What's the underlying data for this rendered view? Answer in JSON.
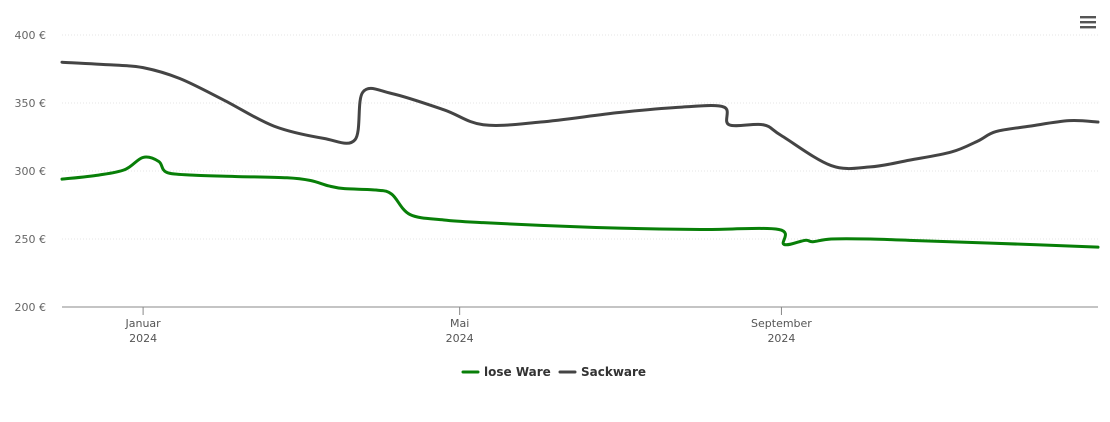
{
  "menu": {
    "icon": "hamburger-menu-icon"
  },
  "chart_data": {
    "type": "line",
    "title": "",
    "xlabel": "",
    "ylabel": "",
    "ylim": [
      200,
      400
    ],
    "xlim": [
      "2023-12-01",
      "2024-12-31"
    ],
    "grid": true,
    "legend_position": "bottom-center",
    "y_ticks": [
      {
        "value": 200,
        "label": "200 €"
      },
      {
        "value": 250,
        "label": "250 €"
      },
      {
        "value": 300,
        "label": "300 €"
      },
      {
        "value": 350,
        "label": "350 €"
      },
      {
        "value": 400,
        "label": "400 €"
      }
    ],
    "x_ticks": [
      {
        "date": "2024-01-01",
        "month": "Januar",
        "year": "2024"
      },
      {
        "date": "2024-05-01",
        "month": "Mai",
        "year": "2024"
      },
      {
        "date": "2024-09-01",
        "month": "September",
        "year": "2024"
      }
    ],
    "series": [
      {
        "name": "lose Ware",
        "color": "#087f08",
        "points": [
          [
            "2023-12-01",
            294
          ],
          [
            "2023-12-15",
            297
          ],
          [
            "2023-12-25",
            301
          ],
          [
            "2024-01-01",
            310
          ],
          [
            "2024-01-07",
            307
          ],
          [
            "2024-01-10",
            299
          ],
          [
            "2024-01-20",
            297
          ],
          [
            "2024-02-05",
            296
          ],
          [
            "2024-02-25",
            295
          ],
          [
            "2024-03-05",
            293
          ],
          [
            "2024-03-12",
            289
          ],
          [
            "2024-03-18",
            287
          ],
          [
            "2024-03-30",
            286
          ],
          [
            "2024-04-05",
            283
          ],
          [
            "2024-04-12",
            268
          ],
          [
            "2024-04-25",
            264
          ],
          [
            "2024-05-10",
            262
          ],
          [
            "2024-06-01",
            260
          ],
          [
            "2024-07-01",
            258
          ],
          [
            "2024-08-01",
            257
          ],
          [
            "2024-08-31",
            257
          ],
          [
            "2024-09-02",
            246
          ],
          [
            "2024-09-10",
            249
          ],
          [
            "2024-09-13",
            248
          ],
          [
            "2024-09-20",
            250
          ],
          [
            "2024-10-05",
            250
          ],
          [
            "2024-10-20",
            249
          ],
          [
            "2024-11-20",
            247
          ],
          [
            "2024-12-31",
            244
          ]
        ]
      },
      {
        "name": "Sackware",
        "color": "#444444",
        "points": [
          [
            "2023-12-01",
            380
          ],
          [
            "2023-12-20",
            378
          ],
          [
            "2024-01-01",
            376
          ],
          [
            "2024-01-15",
            368
          ],
          [
            "2024-02-01",
            352
          ],
          [
            "2024-02-20",
            333
          ],
          [
            "2024-03-10",
            324
          ],
          [
            "2024-03-22",
            323
          ],
          [
            "2024-03-25",
            358
          ],
          [
            "2024-04-05",
            357
          ],
          [
            "2024-04-25",
            345
          ],
          [
            "2024-05-10",
            334
          ],
          [
            "2024-06-01",
            336
          ],
          [
            "2024-07-01",
            343
          ],
          [
            "2024-07-25",
            347
          ],
          [
            "2024-08-10",
            347
          ],
          [
            "2024-08-12",
            334
          ],
          [
            "2024-08-25",
            334
          ],
          [
            "2024-09-01",
            326
          ],
          [
            "2024-09-20",
            304
          ],
          [
            "2024-10-05",
            303
          ],
          [
            "2024-10-20",
            308
          ],
          [
            "2024-11-05",
            314
          ],
          [
            "2024-11-15",
            322
          ],
          [
            "2024-11-22",
            329
          ],
          [
            "2024-12-05",
            333
          ],
          [
            "2024-12-20",
            337
          ],
          [
            "2024-12-31",
            336
          ]
        ]
      }
    ]
  }
}
